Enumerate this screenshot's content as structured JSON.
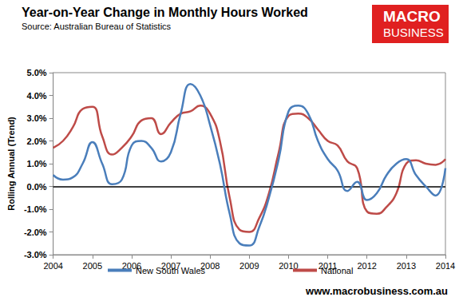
{
  "chart_data": {
    "type": "line",
    "title": "Year-on-Year Change in Monthly Hours Worked",
    "subtitle": "Source: Australian Bureau of Statistics",
    "y_label": "Rolling Annual (Trend)",
    "annotations": {
      "logo": [
        "MACRO",
        "BUSINESS"
      ],
      "website": "www.macrobusiness.com.au"
    },
    "x": [
      2004,
      2004.25,
      2004.5,
      2004.75,
      2005,
      2005.25,
      2005.5,
      2005.75,
      2006,
      2006.25,
      2006.5,
      2006.75,
      2007,
      2007.25,
      2007.5,
      2007.75,
      2008,
      2008.25,
      2008.5,
      2008.75,
      2009,
      2009.25,
      2009.5,
      2009.75,
      2010,
      2010.25,
      2010.5,
      2010.75,
      2011,
      2011.25,
      2011.5,
      2011.75,
      2012,
      2012.25,
      2012.5,
      2012.75,
      2013,
      2013.25,
      2013.5,
      2013.75,
      2014
    ],
    "series": [
      {
        "name": "New South Wales",
        "color": "#4a7ebb",
        "values": [
          0.5,
          0.3,
          0.4,
          1.0,
          1.95,
          1.0,
          0.1,
          0.3,
          1.8,
          2.0,
          1.7,
          1.1,
          1.5,
          3.2,
          4.5,
          4.0,
          2.7,
          1.0,
          -1.2,
          -2.5,
          -2.6,
          -1.8,
          -0.5,
          1.2,
          3.3,
          3.55,
          3.2,
          2.0,
          1.2,
          0.7,
          -0.2,
          0.2,
          -0.6,
          -0.3,
          0.5,
          1.0,
          1.2,
          0.5,
          0.0,
          -0.4,
          0.8
        ]
      },
      {
        "name": "National",
        "color": "#be4b48",
        "values": [
          1.7,
          2.0,
          2.6,
          3.4,
          3.5,
          2.2,
          1.4,
          1.7,
          2.2,
          2.9,
          3.0,
          2.3,
          2.8,
          3.2,
          3.3,
          3.55,
          3.2,
          2.0,
          -0.5,
          -1.9,
          -2.0,
          -1.4,
          -0.3,
          1.5,
          3.1,
          3.2,
          3.0,
          2.5,
          2.0,
          1.8,
          1.1,
          0.8,
          -1.1,
          -1.2,
          -0.9,
          -0.3,
          1.0,
          1.15,
          1.0,
          0.95,
          1.2
        ]
      }
    ],
    "xlim": [
      2004,
      2014
    ],
    "xticks": [
      2004,
      2005,
      2006,
      2007,
      2008,
      2009,
      2010,
      2011,
      2012,
      2013,
      2014
    ],
    "ylim": [
      -3,
      5
    ],
    "yticks": [
      {
        "value": -3,
        "label": "-3.0%"
      },
      {
        "value": -2,
        "label": "-2.0%"
      },
      {
        "value": -1,
        "label": "-1.0%"
      },
      {
        "value": 0,
        "label": "0.0%"
      },
      {
        "value": 1,
        "label": "1.0%"
      },
      {
        "value": 2,
        "label": "2.0%"
      },
      {
        "value": 3,
        "label": "3.0%"
      },
      {
        "value": 4,
        "label": "4.0%"
      },
      {
        "value": 5,
        "label": "5.0%"
      }
    ],
    "grid": false,
    "legend": "bottom"
  }
}
